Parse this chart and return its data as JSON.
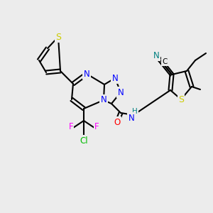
{
  "bg_color": "#ececec",
  "bond_color": "#000000",
  "bond_width": 1.5,
  "font_size": 9,
  "atom_colors": {
    "N": "#0000ff",
    "S": "#cccc00",
    "O": "#ff0000",
    "F": "#ff00ff",
    "Cl": "#00bb00",
    "CN": "#008080",
    "H": "#008080",
    "C": "#000000"
  }
}
